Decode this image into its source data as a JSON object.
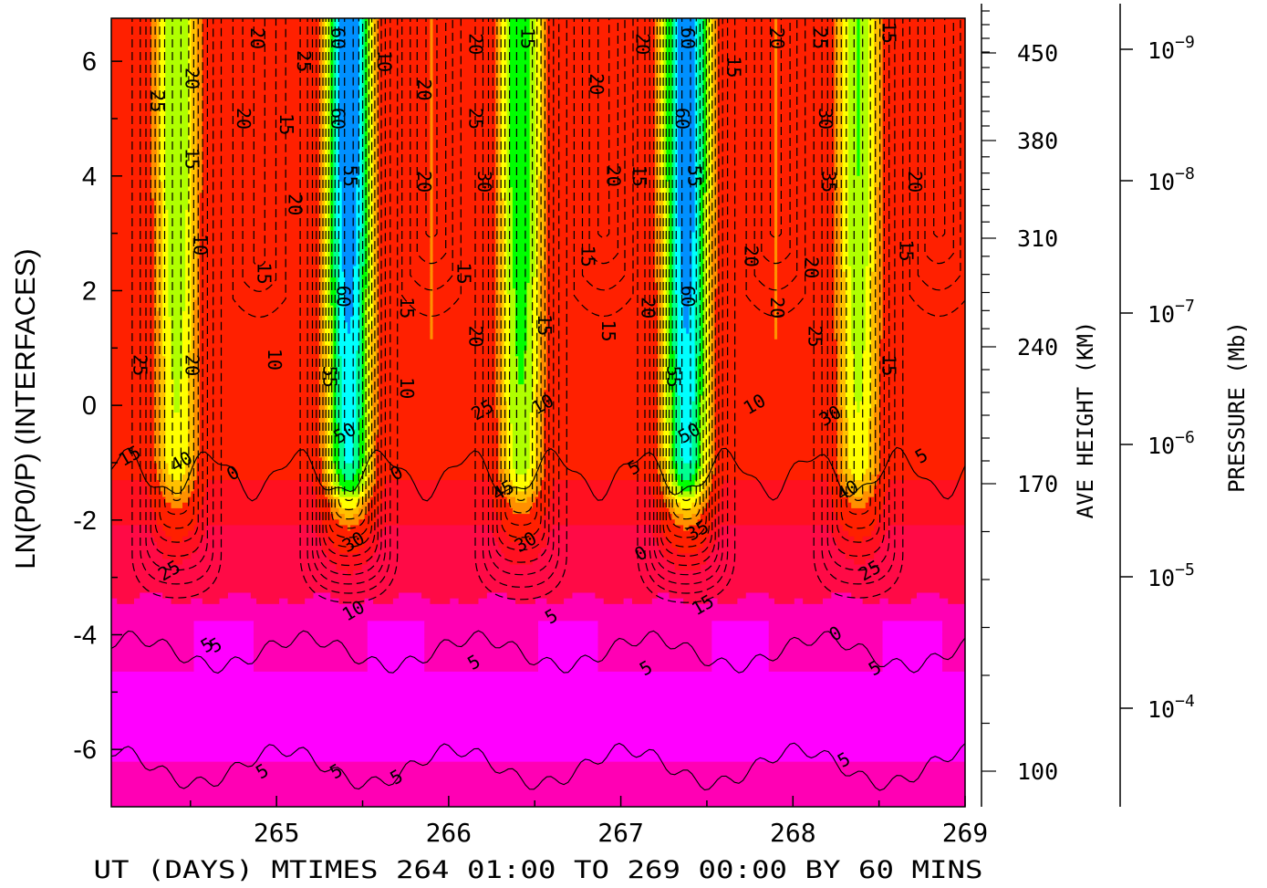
{
  "chart_data": {
    "type": "heatmap",
    "title": "",
    "xlabel": "UT (DAYS) MTIMES 264 01:00 TO 269 00:00 BY   60 MINS",
    "ylabel": "LN(P0/P) (INTERFACES)",
    "xlim": [
      264.04,
      269.0
    ],
    "ylim": [
      -7.0,
      6.75
    ],
    "x_ticks": [
      "265",
      "266",
      "267",
      "268",
      "269"
    ],
    "y_ticks": [
      "6",
      "4",
      "2",
      "0",
      "-2",
      "-4",
      "-6"
    ],
    "right_axis_height": {
      "label": "AVE HEIGHT (KM)",
      "ticks": [
        "450",
        "380",
        "310",
        "240",
        "170",
        "100"
      ]
    },
    "right_axis_pressure": {
      "label": "PRESSURE (Mb)",
      "ticks": [
        {
          "base": "10",
          "exp": "−9"
        },
        {
          "base": "10",
          "exp": "−8"
        },
        {
          "base": "10",
          "exp": "−7"
        },
        {
          "base": "10",
          "exp": "−6"
        },
        {
          "base": "10",
          "exp": "−5"
        },
        {
          "base": "10",
          "exp": "−4"
        }
      ]
    },
    "contour_levels": [
      0,
      5,
      10,
      15,
      20,
      25,
      30,
      35,
      40,
      45,
      50,
      55,
      60
    ],
    "peak_centers_day": [
      264.42,
      265.42,
      266.42,
      267.38,
      268.38
    ],
    "peak_values": [
      40,
      60,
      45,
      60,
      40
    ],
    "trough_centers_day": [
      264.9,
      265.9,
      266.9,
      267.9,
      268.85
    ],
    "trough_values": [
      15,
      20,
      20,
      20,
      20
    ],
    "colors": {
      "lowest": "#ff00ff",
      "low": "#ff00b4",
      "level_0": "#ff0a46",
      "level_10": "#ff2000",
      "level_20": "#ff9000",
      "level_30": "#ffff00",
      "level_40": "#00ff00",
      "level_50": "#00ffff",
      "level_60": "#0000ff"
    },
    "contour_labels": [
      {
        "text": "25",
        "day": 264.3,
        "y": 5.3
      },
      {
        "text": "20",
        "day": 264.5,
        "y": 5.7
      },
      {
        "text": "15",
        "day": 264.5,
        "y": 4.3
      },
      {
        "text": "10",
        "day": 264.55,
        "y": 2.8
      },
      {
        "text": "20",
        "day": 264.5,
        "y": 0.7
      },
      {
        "text": "25",
        "day": 264.2,
        "y": 0.7
      },
      {
        "text": "15",
        "day": 264.15,
        "y": -0.9
      },
      {
        "text": "40",
        "day": 264.45,
        "y": -1.0
      },
      {
        "text": "25",
        "day": 264.38,
        "y": -2.9
      },
      {
        "text": "0",
        "day": 264.75,
        "y": -1.2
      },
      {
        "text": "5",
        "day": 264.65,
        "y": -4.2
      },
      {
        "text": "20",
        "day": 264.88,
        "y": 6.4
      },
      {
        "text": "20",
        "day": 264.8,
        "y": 5.0
      },
      {
        "text": "15",
        "day": 264.92,
        "y": 2.3
      },
      {
        "text": "10",
        "day": 264.98,
        "y": 0.8
      },
      {
        "text": "15",
        "day": 265.05,
        "y": 4.9
      },
      {
        "text": "20",
        "day": 265.1,
        "y": 3.5
      },
      {
        "text": "25",
        "day": 265.15,
        "y": 6.0
      },
      {
        "text": "60",
        "day": 265.35,
        "y": 6.4
      },
      {
        "text": "60",
        "day": 265.35,
        "y": 5.0
      },
      {
        "text": "55",
        "day": 265.42,
        "y": 4.0
      },
      {
        "text": "60",
        "day": 265.38,
        "y": 1.9
      },
      {
        "text": "55",
        "day": 265.3,
        "y": 0.5
      },
      {
        "text": "50",
        "day": 265.4,
        "y": -0.5
      },
      {
        "text": "30",
        "day": 265.45,
        "y": -2.4
      },
      {
        "text": "10",
        "day": 265.45,
        "y": -3.6
      },
      {
        "text": "10",
        "day": 265.62,
        "y": 6.0
      },
      {
        "text": "0",
        "day": 265.7,
        "y": -1.2
      },
      {
        "text": "10",
        "day": 265.75,
        "y": 0.3
      },
      {
        "text": "15",
        "day": 265.75,
        "y": 1.7
      },
      {
        "text": "20",
        "day": 265.85,
        "y": 5.5
      },
      {
        "text": "20",
        "day": 265.85,
        "y": 3.9
      },
      {
        "text": "5",
        "day": 265.7,
        "y": -6.5
      },
      {
        "text": "5",
        "day": 265.35,
        "y": -6.4
      },
      {
        "text": "15",
        "day": 266.08,
        "y": 2.3
      },
      {
        "text": "20",
        "day": 266.15,
        "y": 1.2
      },
      {
        "text": "20",
        "day": 266.15,
        "y": 6.3
      },
      {
        "text": "25",
        "day": 266.15,
        "y": 5.0
      },
      {
        "text": "30",
        "day": 266.2,
        "y": 3.9
      },
      {
        "text": "25",
        "day": 266.2,
        "y": -0.1
      },
      {
        "text": "45",
        "day": 266.32,
        "y": -1.5
      },
      {
        "text": "30",
        "day": 266.45,
        "y": -2.4
      },
      {
        "text": "15",
        "day": 266.45,
        "y": 6.4
      },
      {
        "text": "15",
        "day": 266.55,
        "y": 1.4
      },
      {
        "text": "10",
        "day": 266.55,
        "y": 0.0
      },
      {
        "text": "5",
        "day": 266.6,
        "y": -3.7
      },
      {
        "text": "20",
        "day": 266.85,
        "y": 5.6
      },
      {
        "text": "20",
        "day": 266.95,
        "y": 4.0
      },
      {
        "text": "15",
        "day": 266.8,
        "y": 2.6
      },
      {
        "text": "15",
        "day": 266.92,
        "y": 1.3
      },
      {
        "text": "5",
        "day": 267.08,
        "y": -1.1
      },
      {
        "text": "0",
        "day": 267.12,
        "y": -2.6
      },
      {
        "text": "5",
        "day": 267.15,
        "y": -4.6
      },
      {
        "text": "20",
        "day": 267.12,
        "y": 6.3
      },
      {
        "text": "15",
        "day": 267.1,
        "y": 4.0
      },
      {
        "text": "20",
        "day": 267.15,
        "y": 1.7
      },
      {
        "text": "60",
        "day": 267.38,
        "y": 6.4
      },
      {
        "text": "60",
        "day": 267.35,
        "y": 5.0
      },
      {
        "text": "55",
        "day": 267.42,
        "y": 4.0
      },
      {
        "text": "60",
        "day": 267.38,
        "y": 1.9
      },
      {
        "text": "55",
        "day": 267.3,
        "y": 0.5
      },
      {
        "text": "50",
        "day": 267.4,
        "y": -0.5
      },
      {
        "text": "35",
        "day": 267.45,
        "y": -2.2
      },
      {
        "text": "15",
        "day": 267.48,
        "y": -3.5
      },
      {
        "text": "15",
        "day": 267.65,
        "y": 5.9
      },
      {
        "text": "20",
        "day": 267.75,
        "y": 2.6
      },
      {
        "text": "10",
        "day": 267.78,
        "y": 0.0
      },
      {
        "text": "20",
        "day": 267.9,
        "y": 6.4
      },
      {
        "text": "20",
        "day": 267.9,
        "y": 1.7
      },
      {
        "text": "20",
        "day": 268.1,
        "y": 2.4
      },
      {
        "text": "25",
        "day": 268.12,
        "y": 1.2
      },
      {
        "text": "25",
        "day": 268.15,
        "y": 6.4
      },
      {
        "text": "30",
        "day": 268.18,
        "y": 5.0
      },
      {
        "text": "35",
        "day": 268.2,
        "y": 3.9
      },
      {
        "text": "30",
        "day": 268.22,
        "y": -0.2
      },
      {
        "text": "40",
        "day": 268.32,
        "y": -1.5
      },
      {
        "text": "25",
        "day": 268.45,
        "y": -2.9
      },
      {
        "text": "0",
        "day": 268.25,
        "y": -4.0
      },
      {
        "text": "15",
        "day": 268.55,
        "y": 6.5
      },
      {
        "text": "15",
        "day": 268.55,
        "y": 0.7
      },
      {
        "text": "20",
        "day": 268.7,
        "y": 3.9
      },
      {
        "text": "15",
        "day": 268.65,
        "y": 2.7
      },
      {
        "text": "5",
        "day": 268.75,
        "y": -0.9
      },
      {
        "text": "5",
        "day": 268.48,
        "y": -4.6
      },
      {
        "text": "5",
        "day": 268.3,
        "y": -6.2
      },
      {
        "text": "5",
        "day": 264.6,
        "y": -4.2
      },
      {
        "text": "5",
        "day": 266.15,
        "y": -4.5
      },
      {
        "text": "5",
        "day": 264.92,
        "y": -6.4
      }
    ]
  }
}
